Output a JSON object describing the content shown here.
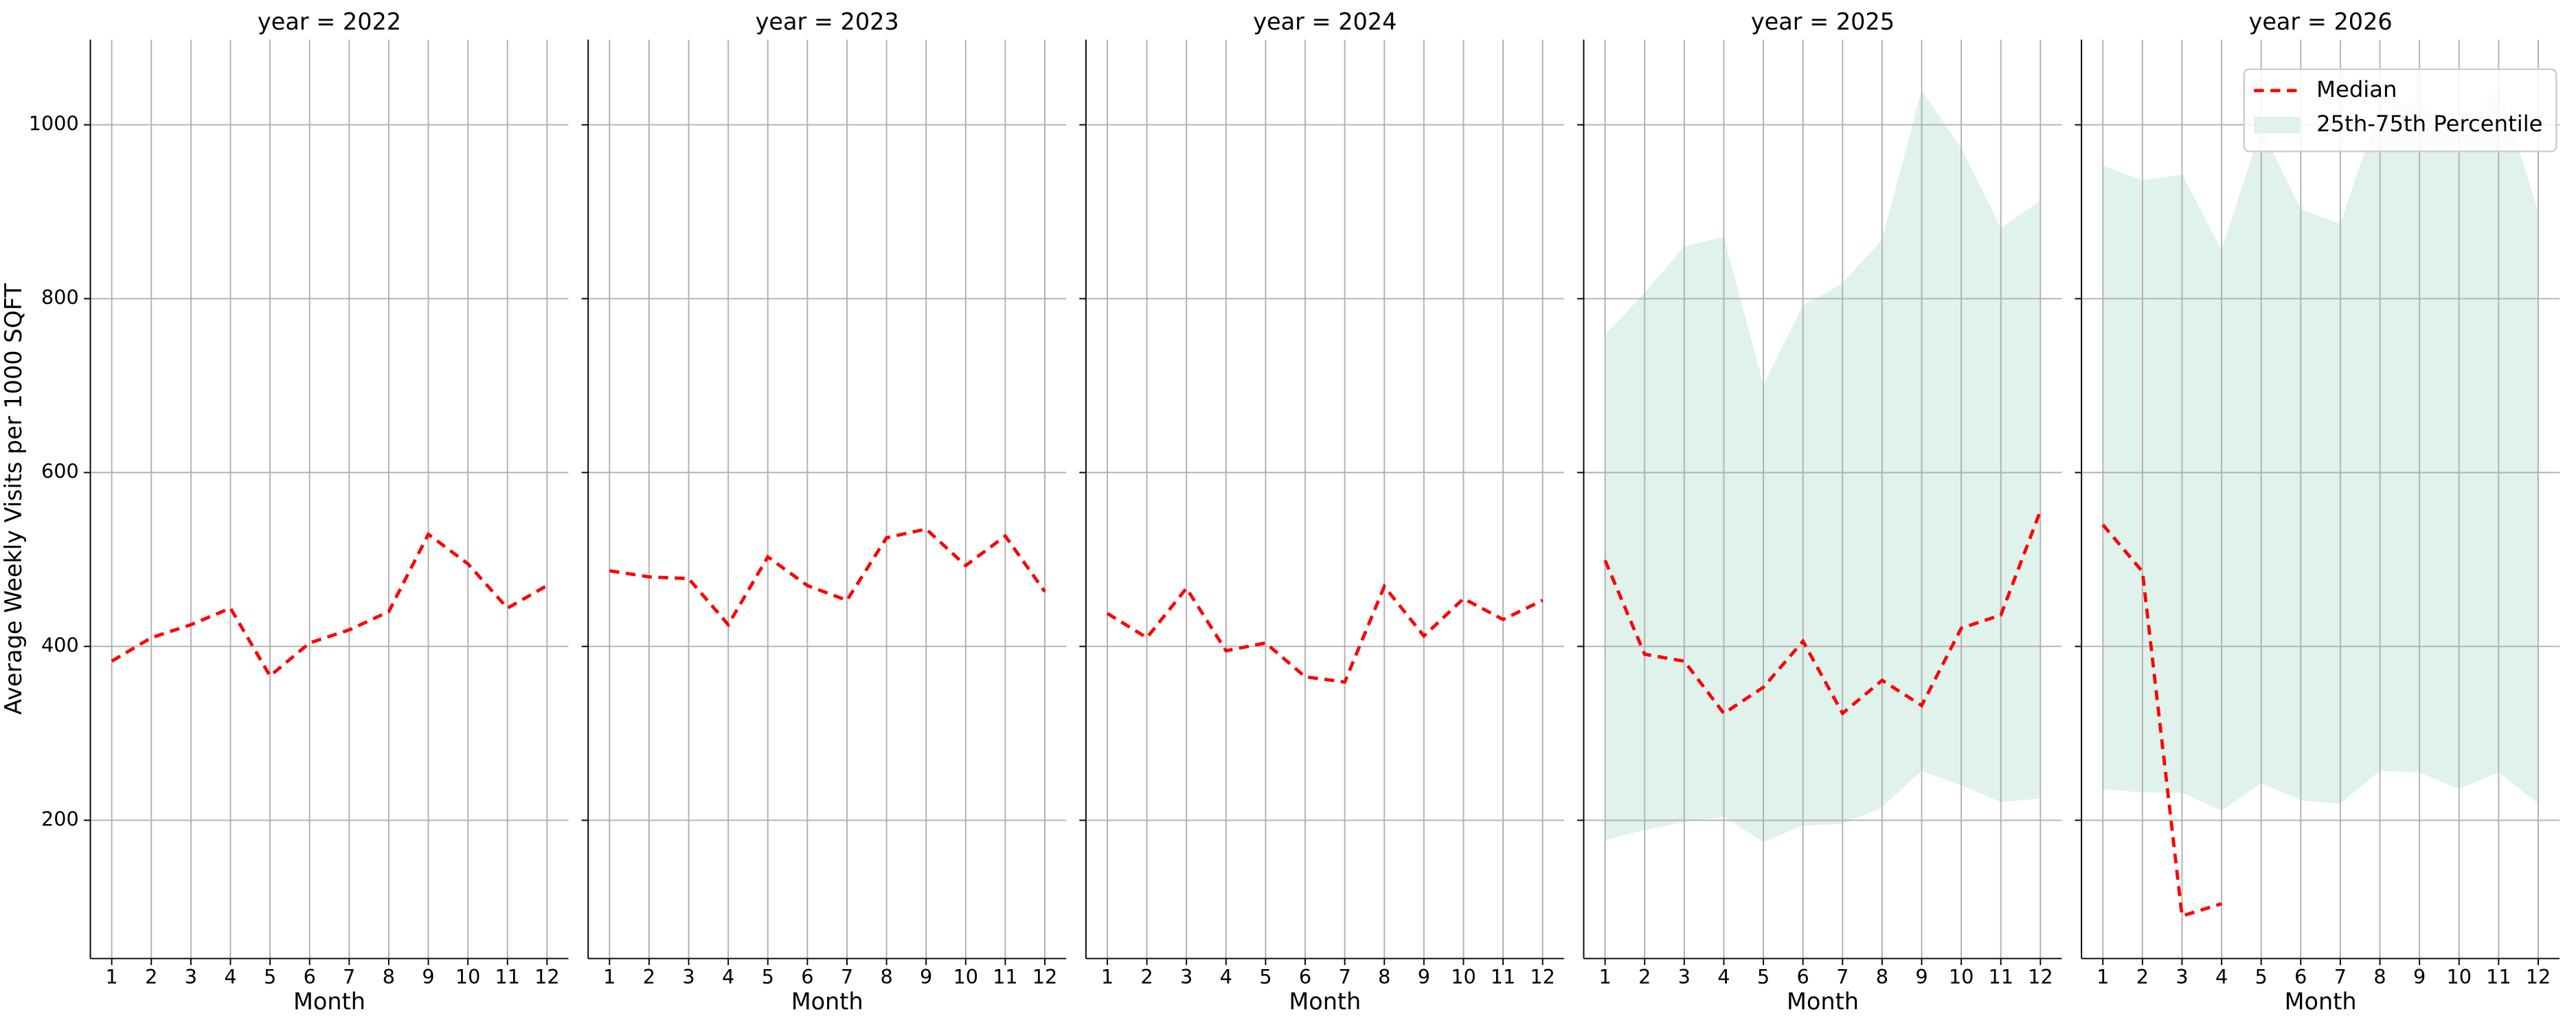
{
  "chart_data": [
    {
      "type": "line",
      "title": "year = 2022",
      "xlabel": "Month",
      "ylabel": "Average Weekly Visits per 1000 SQFT",
      "x": [
        1,
        2,
        3,
        4,
        5,
        6,
        7,
        8,
        9,
        10,
        11,
        12
      ],
      "xlim": [
        0.46,
        12.54
      ],
      "xticks": [
        1,
        2,
        3,
        4,
        5,
        6,
        7,
        8,
        9,
        10,
        11,
        12
      ],
      "ylim": [
        41,
        1098
      ],
      "yticks": [
        200,
        400,
        600,
        800,
        1000
      ],
      "grid": true,
      "series": [
        {
          "color": "#ff0000",
          "values": [
            383,
            410,
            425,
            444,
            366,
            404,
            419,
            440,
            529,
            495,
            444,
            470
          ]
        }
      ]
    },
    {
      "type": "line",
      "title": "year = 2023",
      "xlabel": "Month",
      "x": [
        1,
        2,
        3,
        4,
        5,
        6,
        7,
        8,
        9,
        10,
        11,
        12
      ],
      "xlim": [
        0.46,
        12.54
      ],
      "xticks": [
        1,
        2,
        3,
        4,
        5,
        6,
        7,
        8,
        9,
        10,
        11,
        12
      ],
      "ylim": [
        41,
        1098
      ],
      "yticks": [
        200,
        400,
        600,
        800,
        1000
      ],
      "grid": true,
      "series": [
        {
          "color": "#ff0000",
          "values": [
            487,
            480,
            478,
            425,
            503,
            470,
            453,
            525,
            535,
            493,
            527,
            463
          ]
        }
      ]
    },
    {
      "type": "line",
      "title": "year = 2024",
      "xlabel": "Month",
      "x": [
        1,
        2,
        3,
        4,
        5,
        6,
        7,
        8,
        9,
        10,
        11,
        12
      ],
      "xlim": [
        0.46,
        12.54
      ],
      "xticks": [
        1,
        2,
        3,
        4,
        5,
        6,
        7,
        8,
        9,
        10,
        11,
        12
      ],
      "ylim": [
        41,
        1098
      ],
      "yticks": [
        200,
        400,
        600,
        800,
        1000
      ],
      "grid": true,
      "series": [
        {
          "color": "#ff0000",
          "values": [
            438,
            410,
            467,
            395,
            404,
            365,
            359,
            469,
            412,
            455,
            431,
            453
          ]
        }
      ]
    },
    {
      "type": "line",
      "title": "year = 2025",
      "xlabel": "Month",
      "x": [
        1,
        2,
        3,
        4,
        5,
        6,
        7,
        8,
        9,
        10,
        11,
        12
      ],
      "xlim": [
        0.46,
        12.54
      ],
      "xticks": [
        1,
        2,
        3,
        4,
        5,
        6,
        7,
        8,
        9,
        10,
        11,
        12
      ],
      "ylim": [
        41,
        1098
      ],
      "yticks": [
        200,
        400,
        600,
        800,
        1000
      ],
      "grid": true,
      "series": [
        {
          "color": "#ff0000",
          "values": [
            499,
            391,
            383,
            323,
            353,
            406,
            323,
            361,
            332,
            421,
            436,
            556
          ]
        },
        {
          "color": "#dff2ec",
          "lower": [
            177,
            189,
            198,
            204,
            175,
            194,
            196,
            215,
            257,
            240,
            221,
            225
          ],
          "upper": [
            758,
            807,
            860,
            871,
            701,
            792,
            818,
            868,
            1040,
            973,
            881,
            913
          ]
        }
      ]
    },
    {
      "type": "line",
      "title": "year = 2026",
      "xlabel": "Month",
      "x": [
        1,
        2,
        3,
        4,
        5,
        6,
        7,
        8,
        9,
        10,
        11,
        12
      ],
      "xlim": [
        0.46,
        12.54
      ],
      "xticks": [
        1,
        2,
        3,
        4,
        5,
        6,
        7,
        8,
        9,
        10,
        11,
        12
      ],
      "ylim": [
        41,
        1098
      ],
      "yticks": [
        200,
        400,
        600,
        800,
        1000
      ],
      "grid": true,
      "legend": "upper right",
      "series": [
        {
          "name": "Median",
          "color": "#ff0000",
          "values": [
            540,
            486,
            90,
            104,
            null,
            null,
            null,
            null,
            null,
            null,
            null,
            null
          ]
        },
        {
          "name": "25th-75th Percentile",
          "color": "#dff2ec",
          "lower": [
            236,
            232,
            232,
            211,
            243,
            223,
            219,
            257,
            255,
            236,
            255,
            219
          ],
          "upper": [
            953,
            936,
            943,
            856,
            996,
            903,
            886,
            1021,
            1026,
            987,
            1045,
            900
          ]
        }
      ]
    }
  ]
}
